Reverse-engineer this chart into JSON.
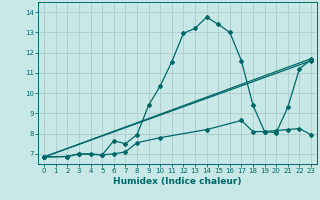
{
  "title": "",
  "xlabel": "Humidex (Indice chaleur)",
  "ylabel": "",
  "bg_color": "#c8e8e8",
  "grid_color": "#b0d0d0",
  "line_color": "#006868",
  "xlim": [
    -0.5,
    23.5
  ],
  "ylim": [
    6.5,
    14.5
  ],
  "xticks": [
    0,
    1,
    2,
    3,
    4,
    5,
    6,
    7,
    8,
    9,
    10,
    11,
    12,
    13,
    14,
    15,
    16,
    17,
    18,
    19,
    20,
    21,
    22,
    23
  ],
  "yticks": [
    7,
    8,
    9,
    10,
    11,
    12,
    13,
    14
  ],
  "line1_x": [
    0,
    2,
    3,
    4,
    5,
    6,
    7,
    8,
    9,
    10,
    11,
    12,
    13,
    14,
    15,
    16,
    17,
    18,
    19,
    20,
    21,
    22,
    23
  ],
  "line1_y": [
    6.85,
    6.87,
    7.0,
    7.0,
    6.95,
    7.65,
    7.5,
    7.95,
    9.4,
    10.35,
    11.55,
    12.95,
    13.2,
    13.75,
    13.4,
    13.0,
    11.6,
    9.4,
    8.1,
    8.05,
    9.3,
    11.2,
    11.65
  ],
  "line2_x": [
    0,
    2,
    3,
    5,
    6,
    7,
    8,
    10,
    14,
    17,
    18,
    19,
    20,
    21,
    22,
    23
  ],
  "line2_y": [
    6.85,
    6.87,
    7.0,
    6.95,
    7.0,
    7.1,
    7.55,
    7.8,
    8.2,
    8.65,
    8.1,
    8.1,
    8.15,
    8.2,
    8.25,
    7.95
  ],
  "line3_x": [
    0,
    23
  ],
  "line3_y": [
    6.85,
    11.6
  ],
  "line4_x": [
    0,
    23
  ],
  "line4_y": [
    6.85,
    11.7
  ]
}
